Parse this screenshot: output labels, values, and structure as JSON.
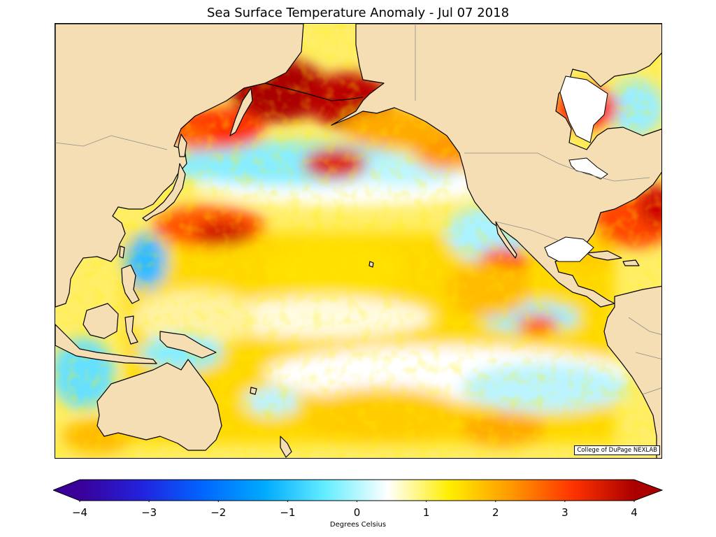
{
  "title": "Sea Surface Temperature Anomaly - Jul 07 2018",
  "credit": "College of DuPage NEXLAB",
  "colorbar": {
    "label": "Degrees Celsius",
    "min": -4,
    "max": 4,
    "extend": "both",
    "ticks": [
      "−4",
      "−3",
      "−2",
      "−1",
      "0",
      "1",
      "2",
      "3",
      "4"
    ],
    "stops": [
      "#3a0099",
      "#2222dd",
      "#0066ff",
      "#00aaff",
      "#66eeff",
      "#ffffff",
      "#ffee00",
      "#ff9900",
      "#ff3300",
      "#aa0000"
    ]
  },
  "colors": {
    "land": "#f5deb3",
    "coastline": "#000000",
    "border": "#8c8c8c",
    "ocean_neutral": "#ffffff"
  }
}
